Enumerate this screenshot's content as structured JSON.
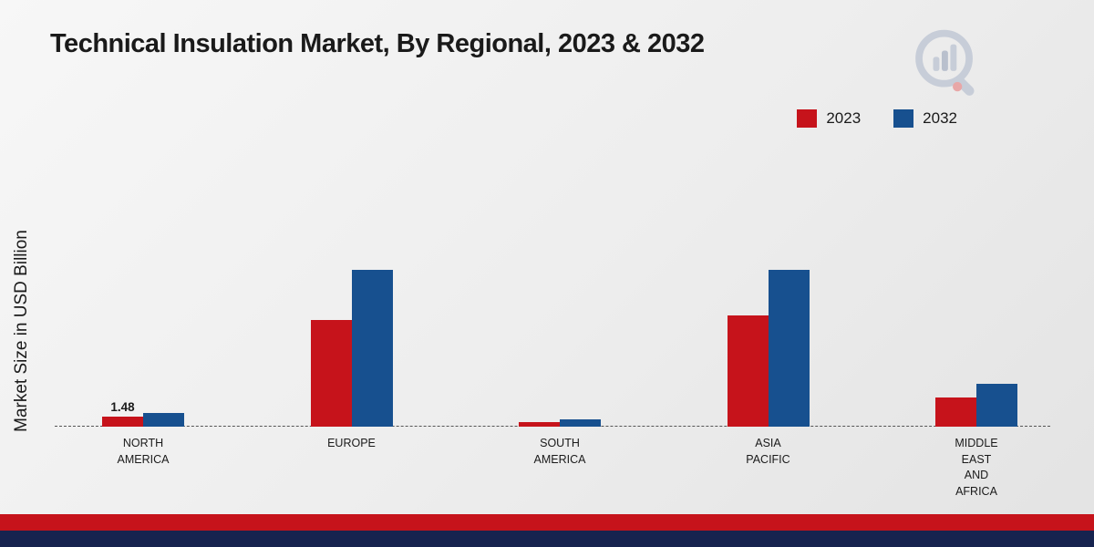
{
  "title": "Technical Insulation Market, By Regional, 2023 & 2032",
  "y_axis_label": "Market Size in USD Billion",
  "legend": [
    {
      "label": "2023",
      "color": "#c6131b"
    },
    {
      "label": "2032",
      "color": "#17508f"
    }
  ],
  "colors": {
    "series_2023": "#c6131b",
    "series_2032": "#17508f",
    "footer_red_band": "#c6131b",
    "footer_navy_band": "#16234f"
  },
  "icons": {
    "logo": "magnifier-bar-chart-logo"
  },
  "chart_data": {
    "type": "bar",
    "title": "Technical Insulation Market, By Regional, 2023 & 2032",
    "ylabel": "Market Size in USD Billion",
    "xlabel": "",
    "ylim": [
      0,
      25
    ],
    "grid": false,
    "legend_position": "top-right",
    "baseline_style": "dashed",
    "categories": [
      "NORTH AMERICA",
      "EUROPE",
      "SOUTH AMERICA",
      "ASIA PACIFIC",
      "MIDDLE EAST AND AFRICA"
    ],
    "category_lines": [
      [
        "NORTH",
        "AMERICA"
      ],
      [
        "EUROPE"
      ],
      [
        "SOUTH",
        "AMERICA"
      ],
      [
        "ASIA",
        "PACIFIC"
      ],
      [
        "MIDDLE",
        "EAST",
        "AND",
        "AFRICA"
      ]
    ],
    "series": [
      {
        "name": "2023",
        "color": "#c6131b",
        "values": [
          1.48,
          15.8,
          0.7,
          16.5,
          4.3
        ]
      },
      {
        "name": "2032",
        "color": "#17508f",
        "values": [
          2.0,
          23.3,
          1.1,
          23.3,
          6.3
        ]
      }
    ],
    "data_labels": [
      {
        "series": "2023",
        "category": "NORTH AMERICA",
        "text": "1.48"
      }
    ]
  }
}
